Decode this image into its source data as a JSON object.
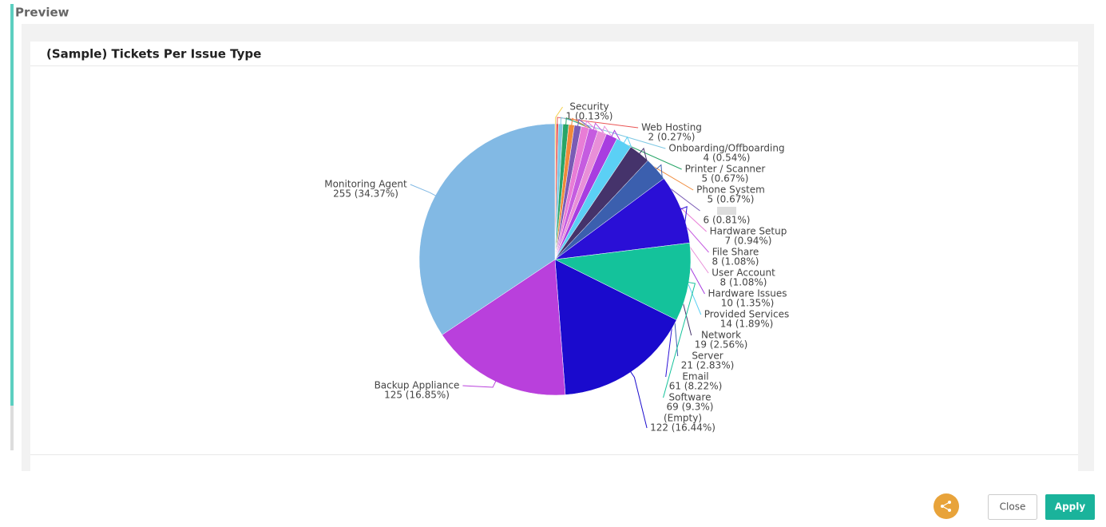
{
  "header": {
    "title": "Preview"
  },
  "chart_data": {
    "type": "pie",
    "title": "(Sample) Tickets Per Issue Type",
    "categories": [
      "Security",
      "Web Hosting",
      "Onboarding/Offboarding",
      "Printer / Scanner",
      "Phone System",
      null,
      "Hardware Setup",
      "File Share",
      "User Account",
      "Hardware Issues",
      "Provided Services",
      "Network",
      "Server",
      "Email",
      "Software",
      "(Empty)",
      "Backup Appliance",
      "Monitoring Agent"
    ],
    "values": [
      1,
      2,
      4,
      5,
      5,
      6,
      7,
      8,
      8,
      10,
      14,
      19,
      21,
      61,
      69,
      122,
      125,
      255
    ],
    "value_labels": [
      "1 (0.13%)",
      "2 (0.27%)",
      "4 (0.54%)",
      "5 (0.67%)",
      "5 (0.67%)",
      "6 (0.81%)",
      "7 (0.94%)",
      "8 (1.08%)",
      "8 (1.08%)",
      "10 (1.35%)",
      "14 (1.89%)",
      "19 (2.56%)",
      "21 (2.83%)",
      "61 (8.22%)",
      "69 (9.3%)",
      "122 (16.44%)",
      "125 (16.85%)",
      "255 (34.37%)"
    ],
    "colors": [
      "#f4d04a",
      "#ea5454",
      "#7ec8e3",
      "#27a567",
      "#f08a3a",
      "#7a5bb5",
      "#e87dd6",
      "#c55ce0",
      "#e88fd8",
      "#a83de0",
      "#5bd0f5",
      "#45336b",
      "#3b5fae",
      "#2a0fd6",
      "#14c29b",
      "#1a0acd",
      "#b940dc",
      "#82b9e4"
    ]
  },
  "footer": {
    "close": "Close",
    "apply": "Apply"
  }
}
